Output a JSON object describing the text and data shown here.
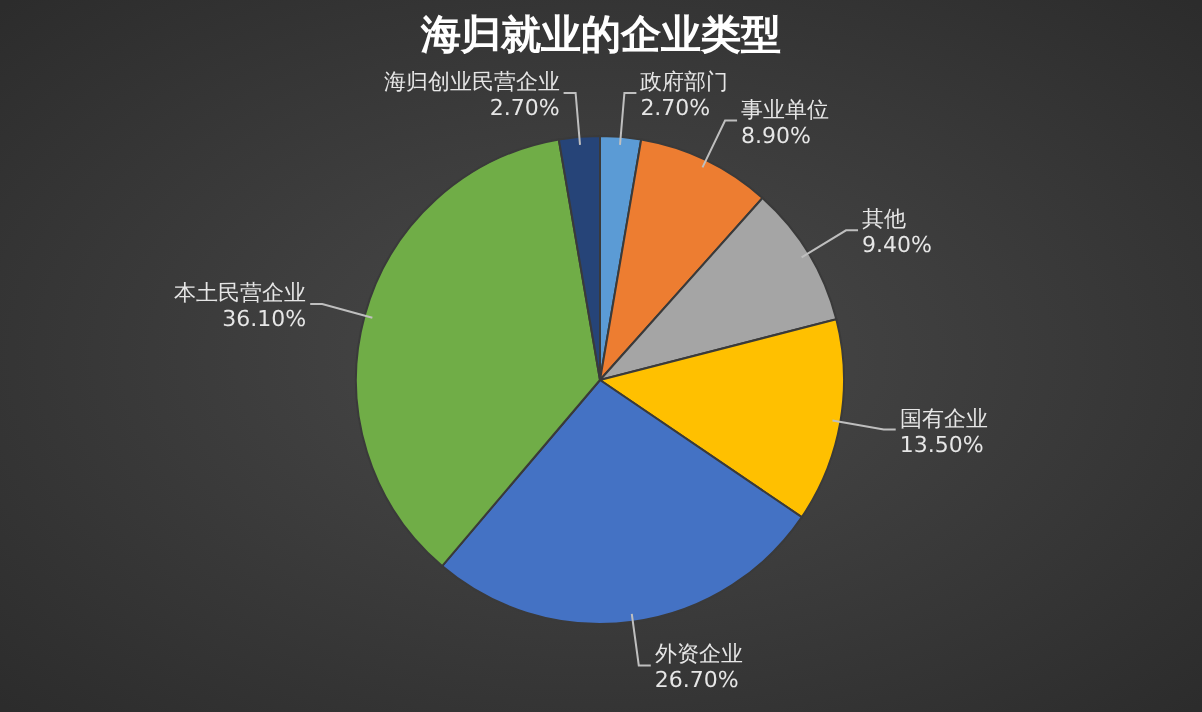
{
  "chart_data": {
    "type": "pie",
    "title": "海归就业的企业类型",
    "categories": [
      "政府部门",
      "事业单位",
      "其他",
      "国有企业",
      "外资企业",
      "本土民营企业",
      "海归创业民营企业"
    ],
    "values": [
      2.7,
      8.9,
      9.4,
      13.5,
      26.7,
      36.1,
      2.7
    ],
    "value_labels": [
      "2.70%",
      "8.90%",
      "9.40%",
      "13.50%",
      "26.70%",
      "36.10%",
      "2.70%"
    ],
    "colors": [
      "#5b9bd5",
      "#ed7d31",
      "#a5a5a5",
      "#ffc000",
      "#4472c4",
      "#70ad47",
      "#264478"
    ]
  }
}
